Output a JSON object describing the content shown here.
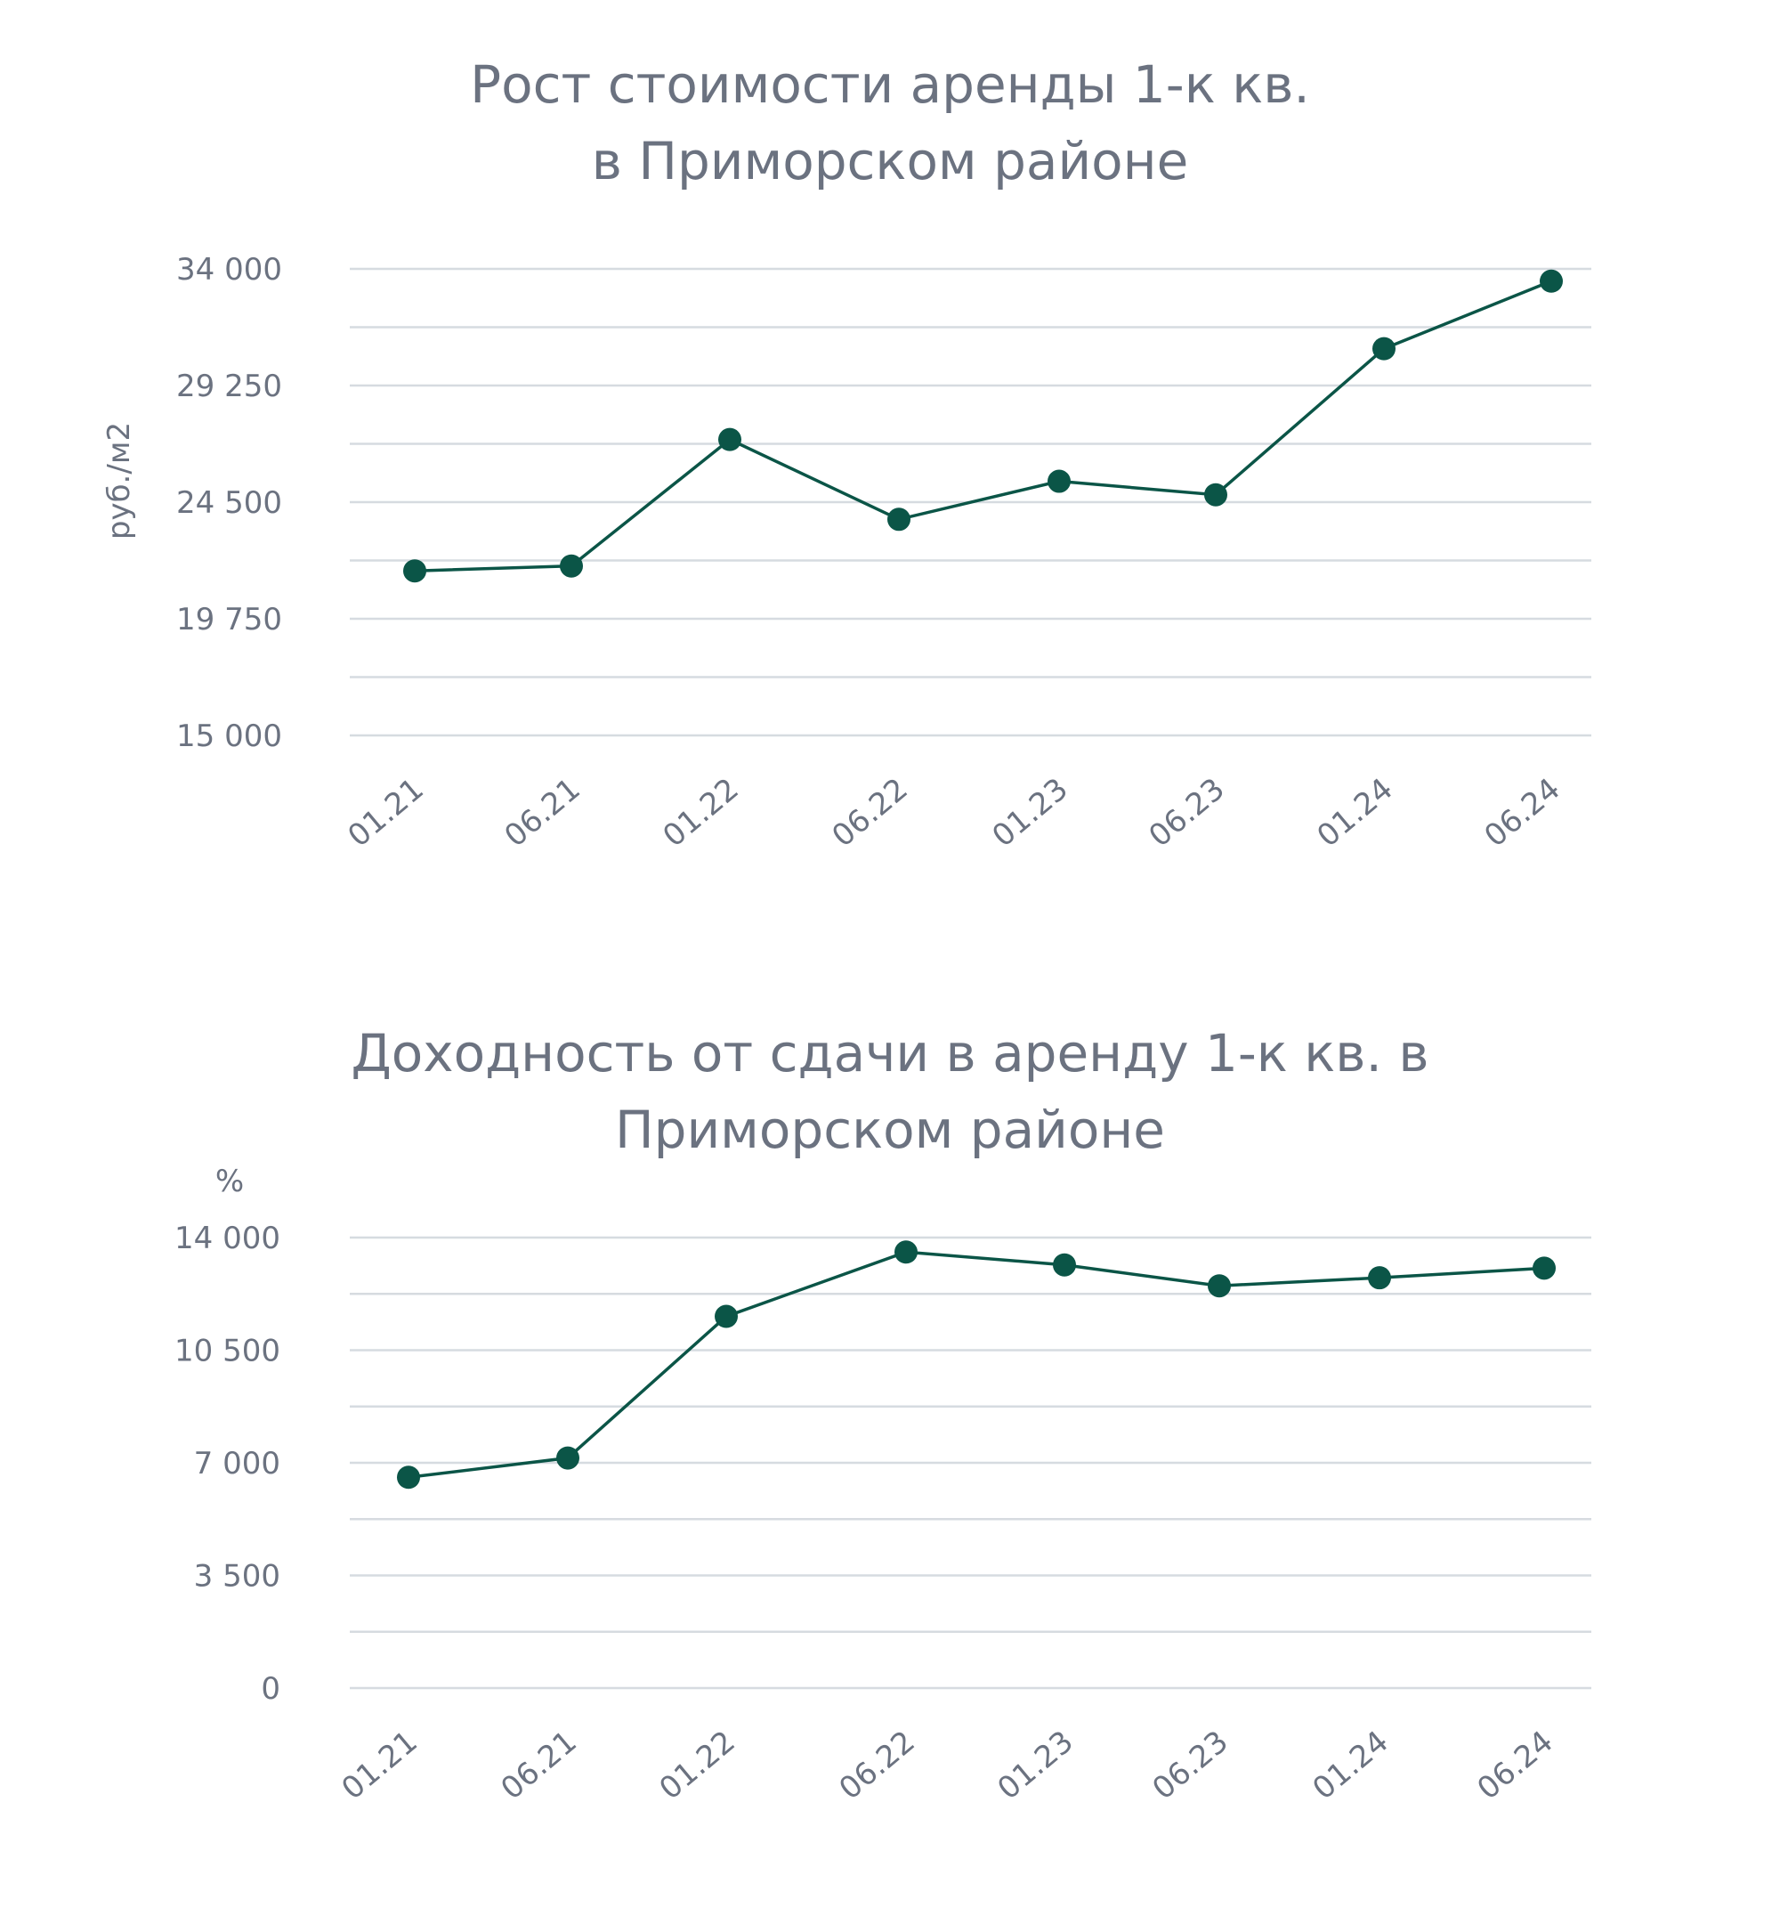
{
  "chart_data": [
    {
      "type": "line",
      "title_lines": [
        "Рост стоимости аренды 1-к кв.",
        "в Приморском районе"
      ],
      "ylabel": "руб./м2",
      "categories": [
        "01.21",
        "06.21",
        "01.22",
        "06.22",
        "01.23",
        "06.23",
        "01.24",
        "06.24"
      ],
      "yticks": [
        "15 000",
        "19 750",
        "24 500",
        "29 250",
        "34 000"
      ],
      "ylim": [
        15000,
        34000
      ],
      "gridlines": 9,
      "values": [
        21700,
        21900,
        27050,
        23800,
        25350,
        24800,
        30750,
        33500
      ],
      "color": "#0b5547"
    },
    {
      "type": "line",
      "title_lines": [
        "Доходность от сдачи в аренду 1-к кв. в",
        "Приморском районе"
      ],
      "ylabel": "%",
      "categories": [
        "01.21",
        "06.21",
        "01.22",
        "06.22",
        "01.23",
        "06.23",
        "01.24",
        "06.24"
      ],
      "yticks": [
        "0",
        "3 500",
        "7 000",
        "10 500",
        "14 000"
      ],
      "ylim": [
        0,
        14000
      ],
      "gridlines": 9,
      "values": [
        6550,
        7150,
        11550,
        13550,
        13150,
        12500,
        12750,
        13050
      ],
      "color": "#0b5547"
    }
  ]
}
